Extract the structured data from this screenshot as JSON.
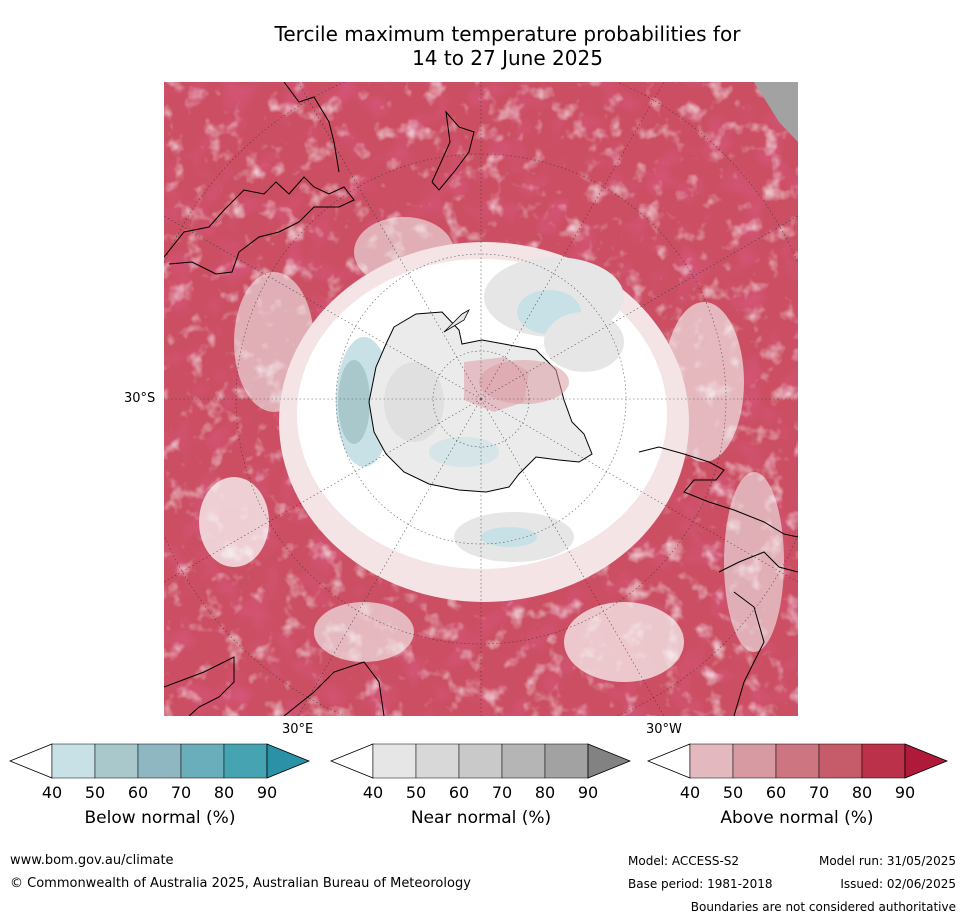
{
  "title_line1": "Tercile maximum temperature probabilities for",
  "title_line2": "14 to 27 June 2025",
  "map": {
    "labels": {
      "lat": "30°S",
      "lon_east": "30°E",
      "lon_west": "30°W"
    }
  },
  "colors": {
    "below": [
      "#ffffff",
      "#c8e1e6",
      "#a8c8cc",
      "#8eb7c1",
      "#6aaebb",
      "#46a4b2",
      "#2a91a6"
    ],
    "near": [
      "#ffffff",
      "#e6e6e6",
      "#d8d8d8",
      "#c9c9c9",
      "#b5b5b5",
      "#a2a2a2",
      "#828282"
    ],
    "above": [
      "#ffffff",
      "#e3b9bf",
      "#d89aa2",
      "#cd7681",
      "#c65c69",
      "#bb3149",
      "#b01a3a"
    ],
    "ocean_base": "#cb4e62",
    "land_outline": "#000000"
  },
  "legends": [
    {
      "key": "below",
      "title": "Below normal (%)",
      "ticks": [
        "40",
        "50",
        "60",
        "70",
        "80",
        "90"
      ]
    },
    {
      "key": "near",
      "title": "Near normal (%)",
      "ticks": [
        "40",
        "50",
        "60",
        "70",
        "80",
        "90"
      ]
    },
    {
      "key": "above",
      "title": "Above normal (%)",
      "ticks": [
        "40",
        "50",
        "60",
        "70",
        "80",
        "90"
      ]
    }
  ],
  "footer": {
    "website": "www.bom.gov.au/climate",
    "copyright": "© Commonwealth of Australia 2025, Australian Bureau of Meteorology",
    "model": "Model: ACCESS-S2",
    "base_period": "Base period: 1981-2018",
    "model_run": "Model run: 31/05/2025",
    "issued": "Issued: 02/06/2025",
    "disclaimer": "Boundaries are not considered authoritative"
  }
}
